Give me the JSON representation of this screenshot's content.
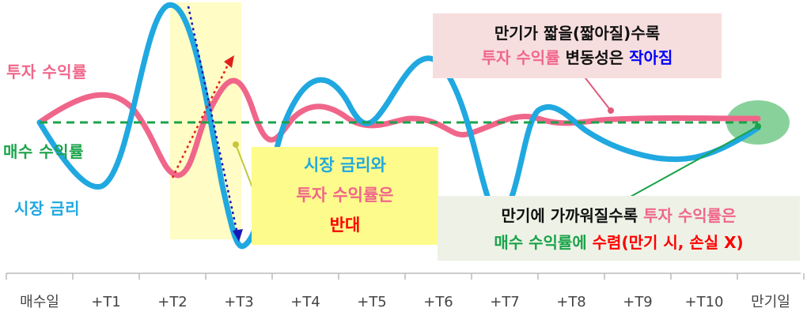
{
  "left_labels": {
    "investment_return": "투자 수익률",
    "purchase_return": "매수 수익률",
    "market_rate": "시장 금리"
  },
  "callouts": {
    "opposite": {
      "line1": "시장 금리와",
      "line2": "투자 수익률은",
      "line3": "반대"
    },
    "maturity": {
      "line1": "만기가 짧을(짧아질)수록",
      "line2_a": "투자 수익률",
      "line2_b": " 변동성은 ",
      "line2_c": "작아짐"
    },
    "convergence": {
      "line1_a": "만기에 가까워질수록 ",
      "line1_b": "투자 수익률은",
      "line2_a": "매수 수익률에 ",
      "line2_b": "수렴(만기 시, 손실 X)"
    }
  },
  "chart_data": {
    "type": "line",
    "x_categories": [
      "매수일",
      "+T1",
      "+T2",
      "+T3",
      "+T4",
      "+T5",
      "+T6",
      "+T7",
      "+T8",
      "+T9",
      "+T10",
      "만기일"
    ],
    "series": [
      {
        "name": "투자 수익률",
        "color": "#f0668a"
      },
      {
        "name": "매수 수익률",
        "color": "#1aa34a",
        "style": "dashed"
      },
      {
        "name": "시장 금리",
        "color": "#20a8e0"
      }
    ],
    "colors": {
      "investment_return": "#f0668a",
      "purchase_return": "#1aa34a",
      "market_rate": "#20a8e0",
      "highlight_red": "#ff0000",
      "highlight_blue": "#0000ff",
      "axis": "#bbbbbb"
    }
  }
}
